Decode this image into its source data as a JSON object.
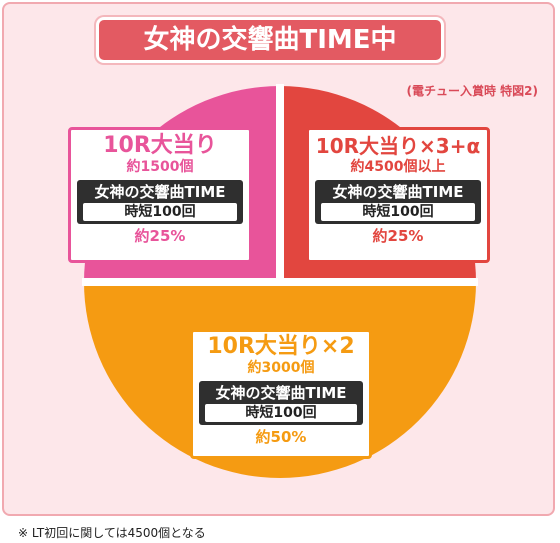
{
  "header": {
    "title": "女神の交響曲TIME中"
  },
  "caption": "(電チュー入賞時 特図2)",
  "segments": [
    {
      "id": "pink",
      "color": "#e8549a",
      "percent": 25,
      "title": "10R大当り",
      "amount": "約1500個",
      "mode": "女神の交響曲TIME",
      "jitan": "時短100回",
      "rate": "約25%"
    },
    {
      "id": "red",
      "color": "#e2463f",
      "percent": 25,
      "title": "10R大当り×3+α",
      "amount": "約4500個以上",
      "mode": "女神の交響曲TIME",
      "jitan": "時短100回",
      "rate": "約25%"
    },
    {
      "id": "orange",
      "color": "#f59b12",
      "percent": 50,
      "title": "10R大当り×2",
      "amount": "約3000個",
      "mode": "女神の交響曲TIME",
      "jitan": "時短100回",
      "rate": "約50%"
    }
  ],
  "footnote": "※ LT初回に関しては4500個となる"
}
